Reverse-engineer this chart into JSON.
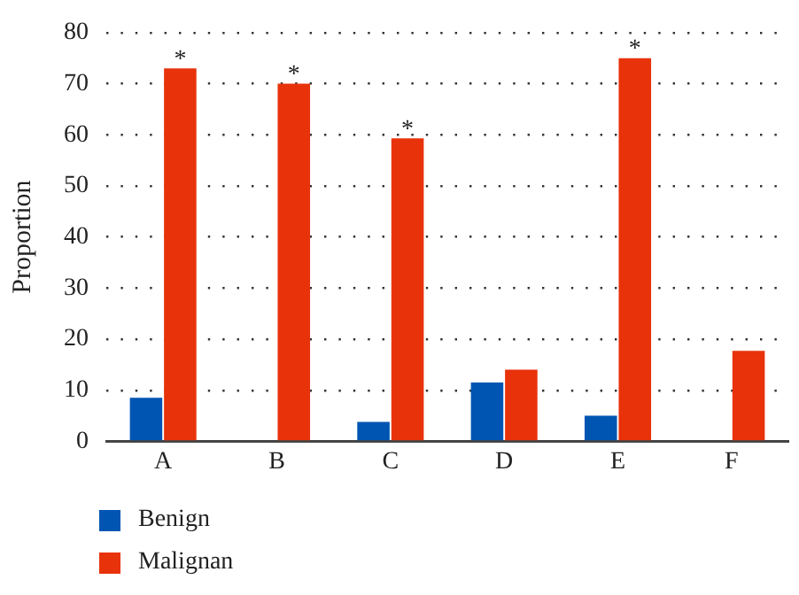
{
  "chart_data": {
    "type": "bar",
    "ylabel": "Proportion",
    "categories": [
      "A",
      "B",
      "C",
      "D",
      "E",
      "F"
    ],
    "series": [
      {
        "name": "Benign",
        "color": "#0055b3",
        "values": [
          8.5,
          null,
          3.8,
          11.5,
          5,
          null
        ]
      },
      {
        "name": "Malignan",
        "color": "#e8320a",
        "values": [
          73,
          70,
          59.3,
          14,
          75,
          17.7
        ]
      }
    ],
    "ylim": [
      0,
      80
    ],
    "yticks": [
      0,
      10,
      20,
      30,
      40,
      50,
      60,
      70,
      80
    ],
    "grid": "y",
    "legend": "bottom left",
    "annotations": [
      {
        "text": "*",
        "x": "A",
        "y": 73
      },
      {
        "text": "*",
        "x": "B",
        "y": 70
      },
      {
        "text": "*",
        "x": "C",
        "y": 59.3
      },
      {
        "text": "*",
        "x": "E",
        "y": 75
      }
    ]
  }
}
